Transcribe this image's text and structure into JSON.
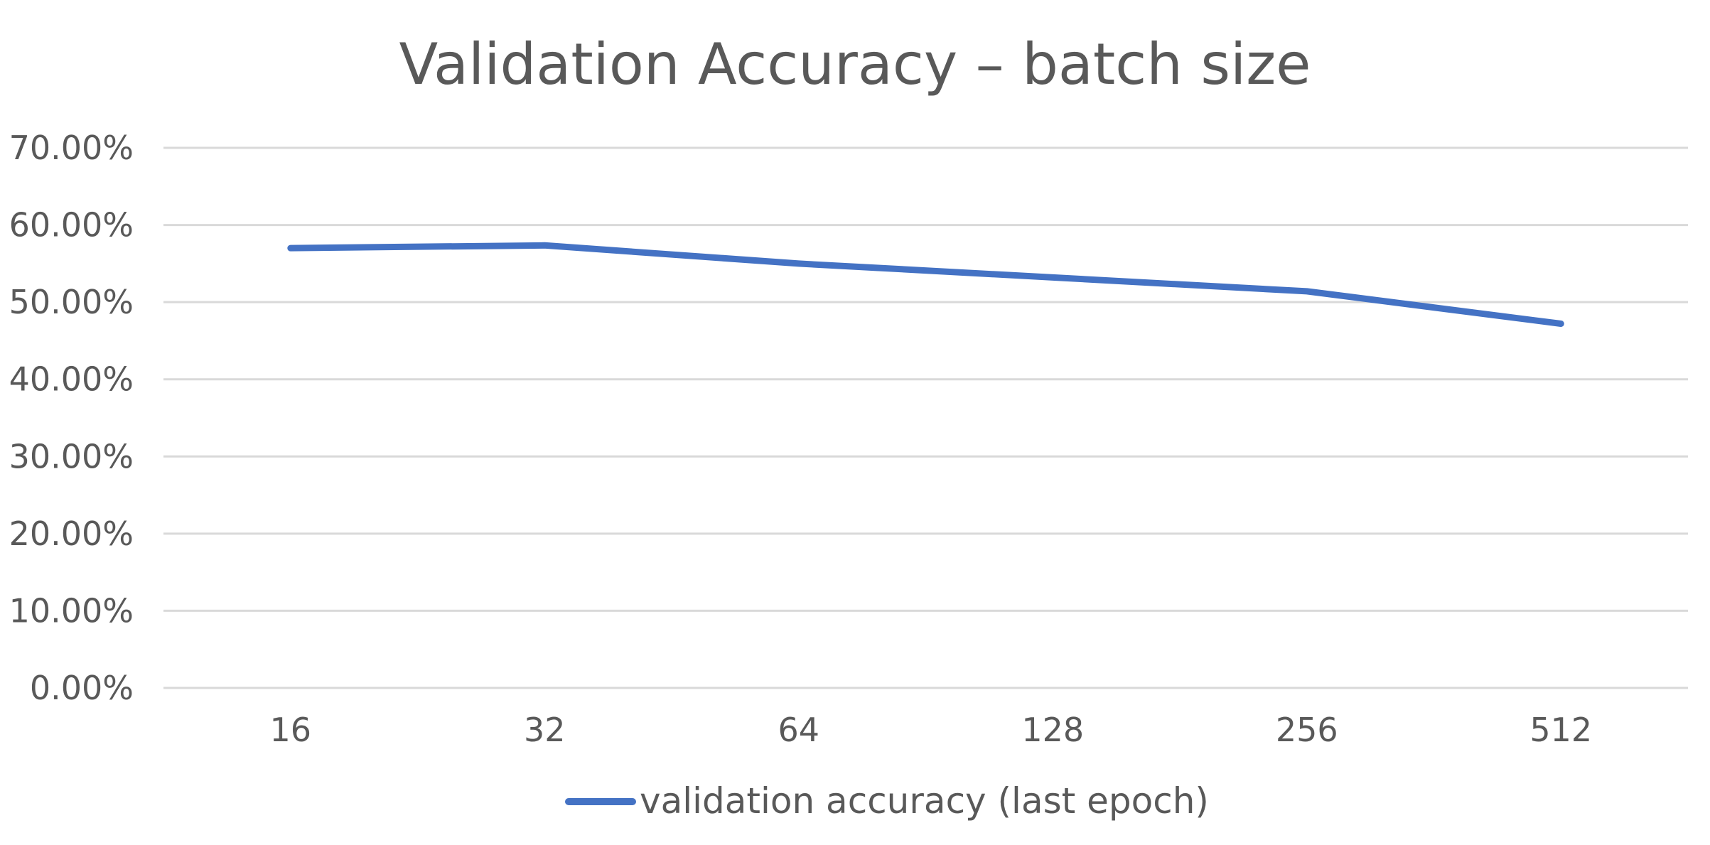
{
  "chart_data": {
    "type": "line",
    "title": "Validation Accuracy – batch size",
    "xlabel": "",
    "ylabel": "",
    "categories": [
      "16",
      "32",
      "64",
      "128",
      "256",
      "512"
    ],
    "series": [
      {
        "name": "validation accuracy (last epoch)",
        "values": [
          0.57,
          0.5735,
          0.55,
          0.532,
          0.514,
          0.472
        ],
        "color": "#4472C4"
      }
    ],
    "ylim": [
      0,
      0.7
    ],
    "yticks": [
      0,
      0.1,
      0.2,
      0.3,
      0.4,
      0.5,
      0.6,
      0.7
    ],
    "ytick_labels": [
      "0.00%",
      "10.00%",
      "20.00%",
      "30.00%",
      "40.00%",
      "50.00%",
      "60.00%",
      "70.00%"
    ],
    "grid": "horizontal",
    "legend_position": "bottom",
    "colors": {
      "text": "#595959",
      "grid": "#d9d9d9",
      "series": "#4472C4"
    }
  }
}
